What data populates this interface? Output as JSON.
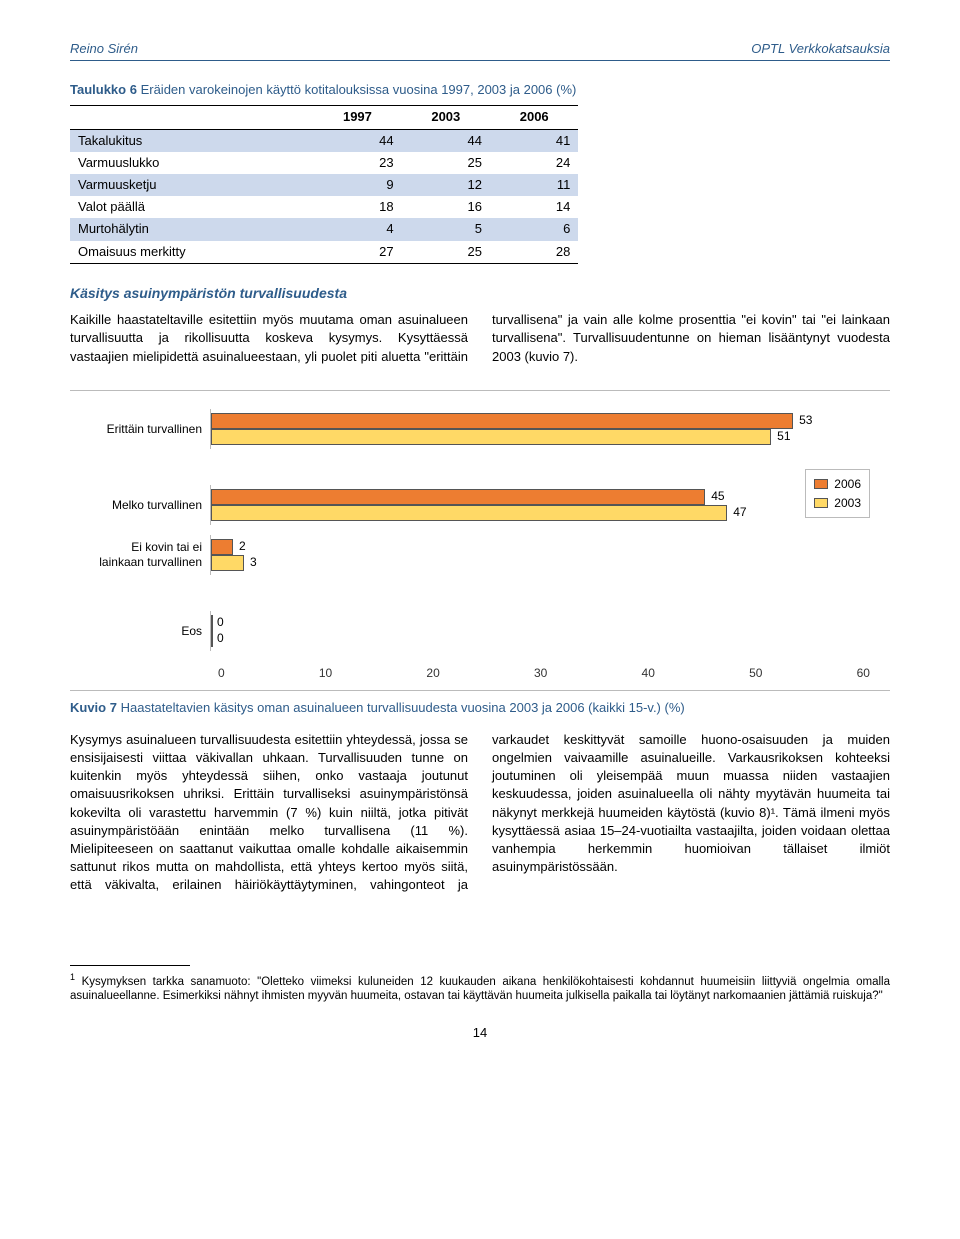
{
  "header": {
    "left": "Reino Sirén",
    "right": "OPTL Verkkokatsauksia"
  },
  "table6": {
    "caption_label": "Taulukko 6",
    "caption_text": "Eräiden varokeinojen käyttö kotitalouksissa vuosina 1997, 2003 ja 2006 (%)",
    "columns": [
      "",
      "1997",
      "2003",
      "2006"
    ],
    "rows": [
      [
        "Takalukitus",
        "44",
        "44",
        "41"
      ],
      [
        "Varmuuslukko",
        "23",
        "25",
        "24"
      ],
      [
        "Varmuusketju",
        "9",
        "12",
        "11"
      ],
      [
        "Valot päällä",
        "18",
        "16",
        "14"
      ],
      [
        "Murtohälytin",
        "4",
        "5",
        "6"
      ],
      [
        "Omaisuus merkitty",
        "27",
        "25",
        "28"
      ]
    ],
    "header_bg": "#ffffff",
    "row_bg_odd": "#cdd9ec",
    "row_bg_even": "#ffffff"
  },
  "section": {
    "title": "Käsitys asuinympäristön turvallisuudesta",
    "body": "Kaikille haastateltaville esitettiin myös muutama oman asuinalueen turvallisuutta ja rikollisuutta koskeva kysymys. Kysyttäessä vastaajien mielipidettä asuinalueestaan, yli puolet piti aluetta \"erittäin turvallisena\" ja vain alle kolme prosenttia \"ei kovin\" tai \"ei lainkaan turvallisena\". Turvallisuudentunne on hieman lisääntynyt vuodesta 2003 (kuvio 7)."
  },
  "chart7": {
    "type": "bar",
    "xlim": [
      0,
      60
    ],
    "xtick_step": 10,
    "bar_colors": {
      "2006": "#ed7d31",
      "2003": "#ffd966"
    },
    "background_color": "#ffffff",
    "grid_color": "#bbbbbb",
    "label_fontsize": 12,
    "categories": [
      {
        "label": "Erittäin turvallinen",
        "v2006": 53,
        "v2003": 51
      },
      {
        "label": "Melko turvallinen",
        "v2006": 45,
        "v2003": 47
      },
      {
        "label": "Ei kovin tai ei lainkaan turvallinen",
        "v2006": 2,
        "v2003": 3
      },
      {
        "label": "Eos",
        "v2006": 0,
        "v2003": 0
      }
    ],
    "xticks": [
      "0",
      "10",
      "20",
      "30",
      "40",
      "50",
      "60"
    ],
    "legend": [
      {
        "label": "2006",
        "color": "#ed7d31"
      },
      {
        "label": "2003",
        "color": "#ffd966"
      }
    ],
    "caption_label": "Kuvio 7",
    "caption_text": "Haastateltavien käsitys oman asuinalueen turvallisuudesta vuosina 2003 ja 2006 (kaikki 15-v.) (%)"
  },
  "lower_text": "Kysymys asuinalueen turvallisuudesta esitettiin yhteydessä, jossa se ensisijaisesti viittaa väkivallan uhkaan. Turvallisuuden tunne on kuitenkin myös yhteydessä siihen, onko vastaaja joutunut omaisuusrikoksen uhriksi. Erittäin turvalliseksi asuinympäristönsä kokevilta oli varastettu harvemmin (7 %) kuin niiltä, jotka pitivät asuinympäristöään enintään melko turvallisena (11 %). Mielipiteeseen on saattanut vaikuttaa omalle kohdalle aikaisemmin sattunut rikos mutta on mahdollista, että yhteys kertoo myös siitä, että väkivalta, erilainen häiriökäyttäytyminen, vahingonteot ja varkaudet keskittyvät samoille huono-osaisuuden ja muiden ongelmien vaivaamille asuinalueille. Varkausrikoksen kohteeksi joutuminen oli yleisempää muun muassa niiden vastaajien keskuudessa, joiden asuinalueella oli nähty myytävän huumeita tai näkynyt merkkejä huumeiden käytöstä (kuvio 8)¹. Tämä ilmeni myös kysyttäessä asiaa 15–24-vuotiailta vastaajilta, joiden voidaan olettaa vanhempia herkemmin huomioivan tällaiset ilmiöt asuinympäristössään.",
  "footnote": {
    "num": "1",
    "text": "Kysymyksen tarkka sanamuoto: \"Oletteko viimeksi kuluneiden 12 kuukauden aikana henkilökohtaisesti kohdannut huumeisiin liittyviä ongelmia omalla asuinalueellanne. Esimerkiksi nähnyt ihmisten myyvän huumeita, ostavan tai käyttävän huumeita julkisella paikalla tai löytänyt narkomaanien jättämiä ruiskuja?\""
  },
  "page_number": "14"
}
